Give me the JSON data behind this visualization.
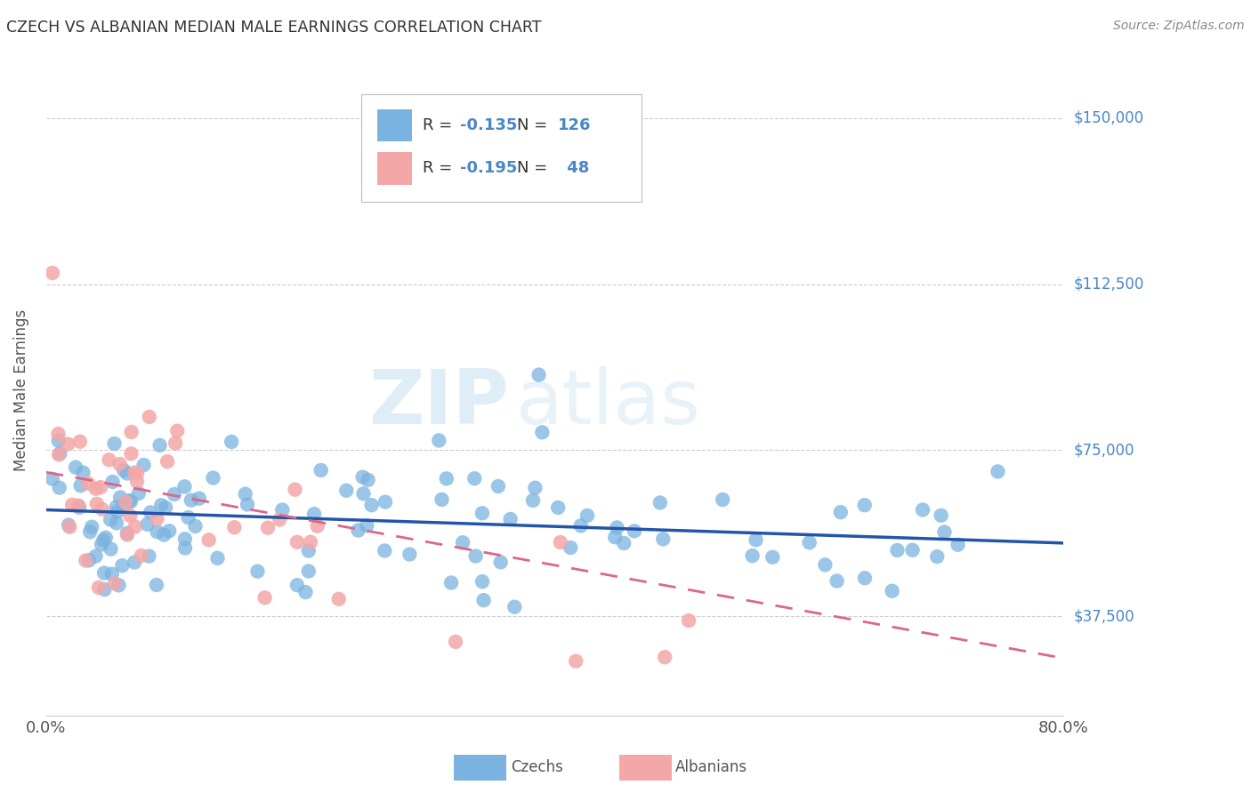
{
  "title": "CZECH VS ALBANIAN MEDIAN MALE EARNINGS CORRELATION CHART",
  "source": "Source: ZipAtlas.com",
  "ylabel": "Median Male Earnings",
  "y_ticks": [
    37500,
    75000,
    112500,
    150000
  ],
  "y_tick_labels": [
    "$37,500",
    "$75,000",
    "$112,500",
    "$150,000"
  ],
  "x_min": 0.0,
  "x_max": 80.0,
  "y_min": 15000,
  "y_max": 162000,
  "czech_color": "#7ab3e0",
  "albanian_color": "#f4a7a7",
  "czech_line_color": "#2255aa",
  "albanian_line_color": "#dd6688",
  "czech_R": -0.135,
  "czech_N": 126,
  "albanian_R": -0.195,
  "albanian_N": 48,
  "watermark_zip": "ZIP",
  "watermark_atlas": "atlas",
  "legend_label_czech": "Czechs",
  "legend_label_albanian": "Albanians",
  "background_color": "#ffffff",
  "grid_color": "#cccccc",
  "axis_label_color": "#4a86c8",
  "title_color": "#333333",
  "source_color": "#888888",
  "legend_text_color": "#333333",
  "legend_value_color": "#4a86c8",
  "czech_trend_y0": 61500,
  "czech_trend_y1": 54000,
  "albanian_trend_y0": 70000,
  "albanian_trend_y1": 28000
}
